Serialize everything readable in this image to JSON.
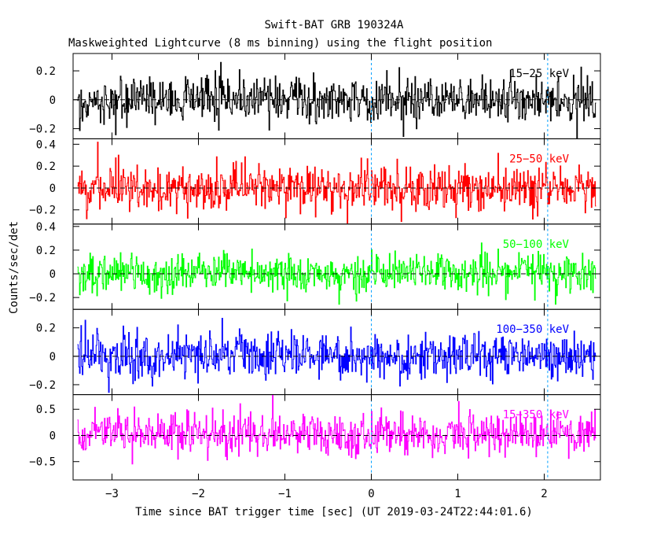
{
  "chart_data": {
    "type": "line",
    "title": "Swift-BAT GRB 190324A",
    "subtitle": "Maskweighted Lightcurve (8 ms binning) using the flight position",
    "xlabel": "Time since BAT trigger time [sec] (UT 2019-03-24T22:44:01.6)",
    "ylabel": "Counts/sec/det",
    "xlim": [
      -3.45,
      2.65
    ],
    "x_range_data": [
      -3.4,
      2.6
    ],
    "bin_width_s": 0.008,
    "x_ticks": [
      -3,
      -2,
      -1,
      0,
      1,
      2
    ],
    "x_tick_labels": [
      "−3",
      "−2",
      "−1",
      "0",
      "1",
      "2"
    ],
    "panels": [
      {
        "name": "15−25 keV",
        "color": "#000000",
        "ylim": [
          -0.27,
          0.32
        ],
        "ticks": [
          -0.2,
          0,
          0.2
        ],
        "tick_labels": [
          "−0.2",
          "0",
          "0.2"
        ],
        "noise_sigma": 0.085,
        "mean": 0.0
      },
      {
        "name": "25−50 keV",
        "color": "#ff0000",
        "ylim": [
          -0.33,
          0.45
        ],
        "ticks": [
          -0.2,
          0,
          0.2,
          0.4
        ],
        "tick_labels": [
          "−0.2",
          "0",
          "0.2",
          "0.4"
        ],
        "noise_sigma": 0.1,
        "mean": 0.0
      },
      {
        "name": "50−100 keV",
        "color": "#00ff00",
        "ylim": [
          -0.3,
          0.42
        ],
        "ticks": [
          -0.2,
          0,
          0.2,
          0.4
        ],
        "tick_labels": [
          "−0.2",
          "0",
          "0.2",
          "0.4"
        ],
        "noise_sigma": 0.085,
        "mean": 0.01
      },
      {
        "name": "100−350 keV",
        "color": "#0000ff",
        "ylim": [
          -0.27,
          0.33
        ],
        "ticks": [
          -0.2,
          0,
          0.2
        ],
        "tick_labels": [
          "−0.2",
          "0",
          "0.2"
        ],
        "noise_sigma": 0.08,
        "mean": 0.0
      },
      {
        "name": "15−350 keV",
        "color": "#ff00ff",
        "ylim": [
          -0.85,
          0.78
        ],
        "ticks": [
          -0.5,
          0,
          0.5
        ],
        "tick_labels": [
          "−0.5",
          "0",
          "0.5"
        ],
        "noise_sigma": 0.2,
        "mean": 0.02
      }
    ],
    "reference_lines_x": [
      0,
      2.04
    ],
    "grid": false,
    "legend": "per-panel label, top-right"
  }
}
